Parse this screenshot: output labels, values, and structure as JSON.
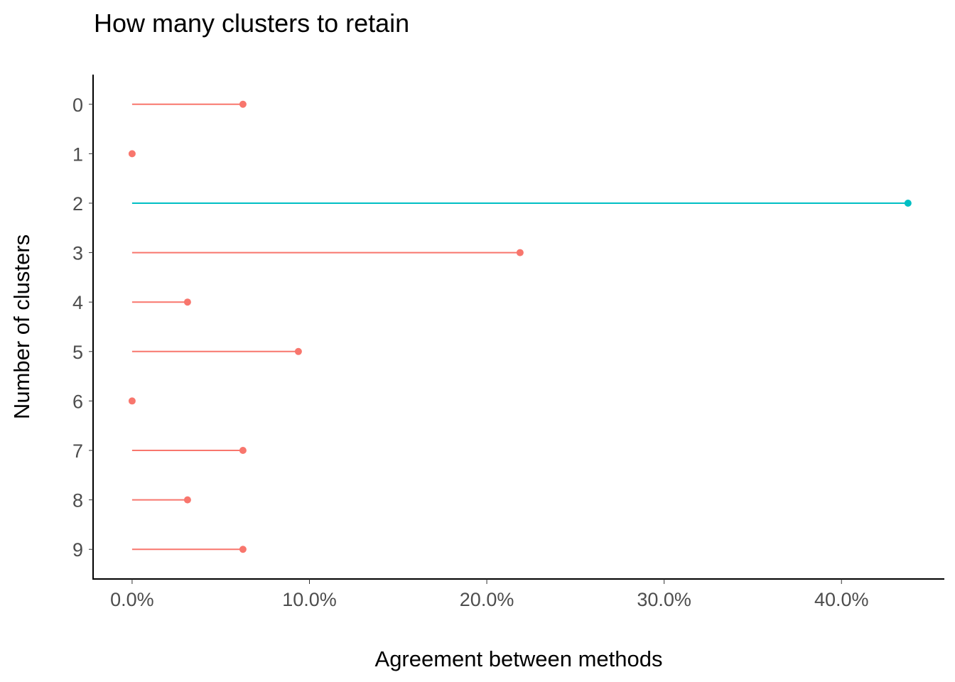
{
  "chart_data": {
    "type": "lollipop",
    "title": "How many clusters to retain",
    "xlabel": "Agreement between methods",
    "ylabel": "Number of clusters",
    "x_ticks": [
      "0.0%",
      "10.0%",
      "20.0%",
      "30.0%",
      "40.0%"
    ],
    "x_tick_values": [
      0,
      10,
      20,
      30,
      40
    ],
    "xlim": [
      -2.2,
      45.8
    ],
    "categories": [
      "0",
      "1",
      "2",
      "3",
      "4",
      "5",
      "6",
      "7",
      "8",
      "9"
    ],
    "values": [
      6.25,
      0.0,
      43.75,
      21.875,
      3.125,
      9.375,
      0.0,
      6.25,
      3.125,
      6.25
    ],
    "highlight": [
      false,
      false,
      true,
      false,
      false,
      false,
      false,
      false,
      false,
      false
    ],
    "colors": {
      "default": "#f8766d",
      "highlight": "#00bfc4"
    },
    "grid": false,
    "legend": "none"
  }
}
